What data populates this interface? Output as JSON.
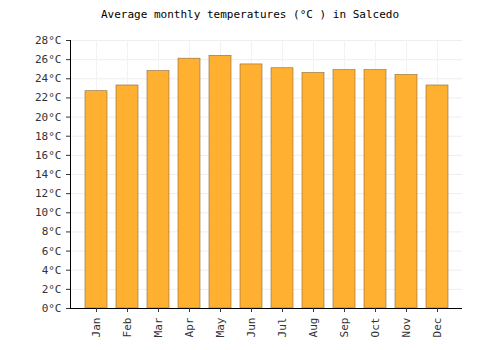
{
  "chart_data": {
    "type": "bar",
    "title": "Average monthly temperatures (°C ) in Salcedo",
    "categories": [
      "Jan",
      "Feb",
      "Mar",
      "Apr",
      "May",
      "Jun",
      "Jul",
      "Aug",
      "Sep",
      "Oct",
      "Nov",
      "Dec"
    ],
    "values": [
      22.7,
      23.3,
      24.8,
      26.1,
      26.4,
      25.5,
      25.1,
      24.6,
      24.9,
      24.9,
      24.4,
      23.3
    ],
    "color": "#ffb030",
    "ylim": [
      0,
      28
    ],
    "yticks": [
      {
        "value": 0,
        "label": "0°C"
      },
      {
        "value": 2,
        "label": "2°C"
      },
      {
        "value": 4,
        "label": "4°C"
      },
      {
        "value": 6,
        "label": "6°C"
      },
      {
        "value": 8,
        "label": "8°C"
      },
      {
        "value": 10,
        "label": "10°C"
      },
      {
        "value": 12,
        "label": "12°C"
      },
      {
        "value": 14,
        "label": "14°C"
      },
      {
        "value": 16,
        "label": "16°C"
      },
      {
        "value": 18,
        "label": "18°C"
      },
      {
        "value": 20,
        "label": "20°C"
      },
      {
        "value": 22,
        "label": "22°C"
      },
      {
        "value": 24,
        "label": "24°C"
      },
      {
        "value": 26,
        "label": "26°C"
      },
      {
        "value": 28,
        "label": "28°C"
      }
    ],
    "grid": true
  }
}
